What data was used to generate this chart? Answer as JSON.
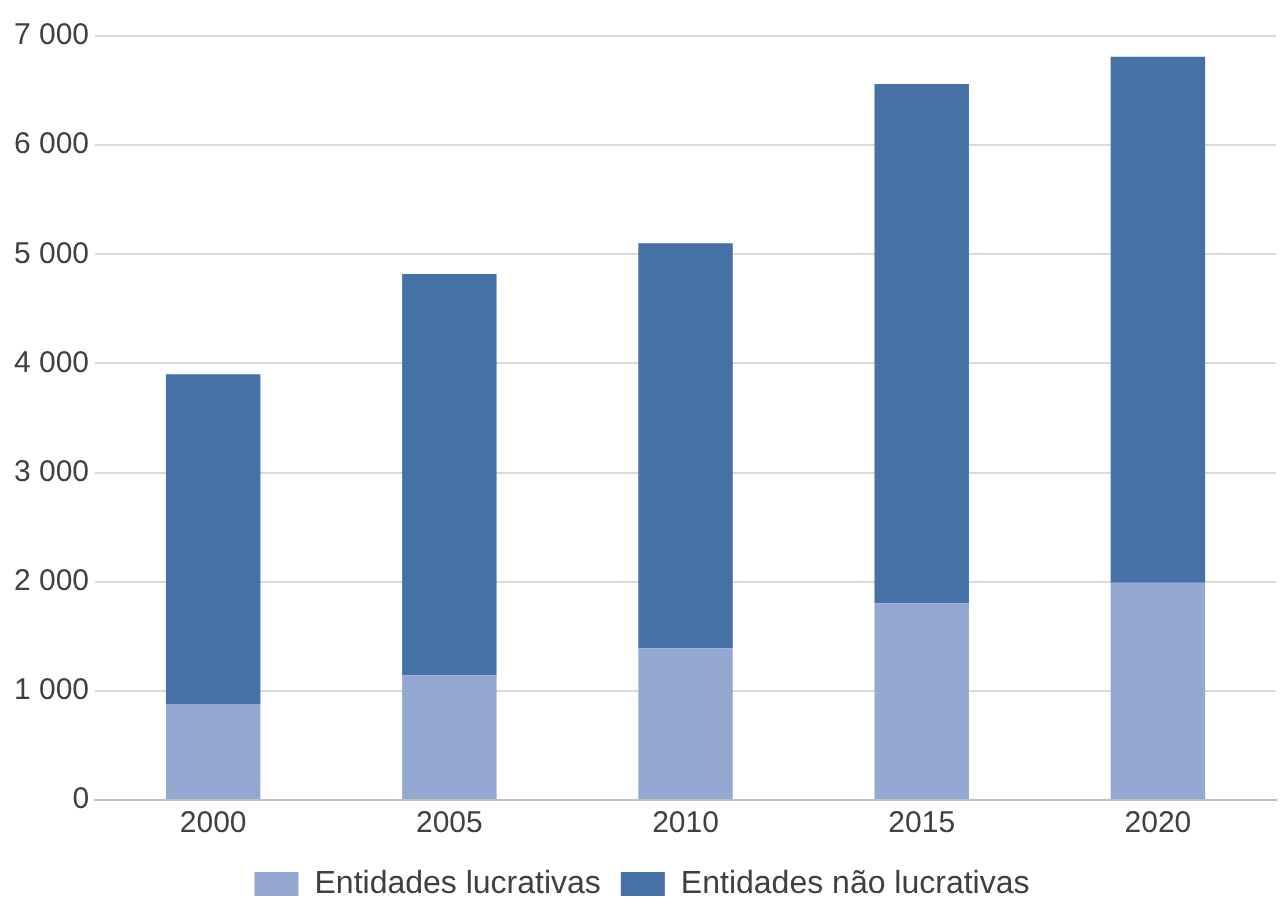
{
  "chart_data": {
    "type": "bar",
    "stacked": true,
    "categories": [
      "2000",
      "2005",
      "2010",
      "2015",
      "2020"
    ],
    "series": [
      {
        "name": "Entidades lucrativas",
        "color": "#93a9d2",
        "values": [
          880,
          1140,
          1390,
          1800,
          1990
        ]
      },
      {
        "name": "Entidades não lucrativas",
        "color": "#4671a7",
        "values": [
          3020,
          3680,
          3710,
          4760,
          4820
        ]
      }
    ],
    "ylim": [
      0,
      7000
    ],
    "yticks": [
      0,
      {
        "value": 1000,
        "label": "1 000"
      },
      {
        "value": 2000,
        "label": "2 000"
      },
      {
        "value": 3000,
        "label": "3 000"
      },
      {
        "value": 4000,
        "label": "4 000"
      },
      {
        "value": 5000,
        "label": "5 000"
      },
      {
        "value": 6000,
        "label": "6 000"
      },
      {
        "value": 7000,
        "label": "7 000"
      }
    ],
    "grid": "y",
    "legend": "bottom"
  }
}
